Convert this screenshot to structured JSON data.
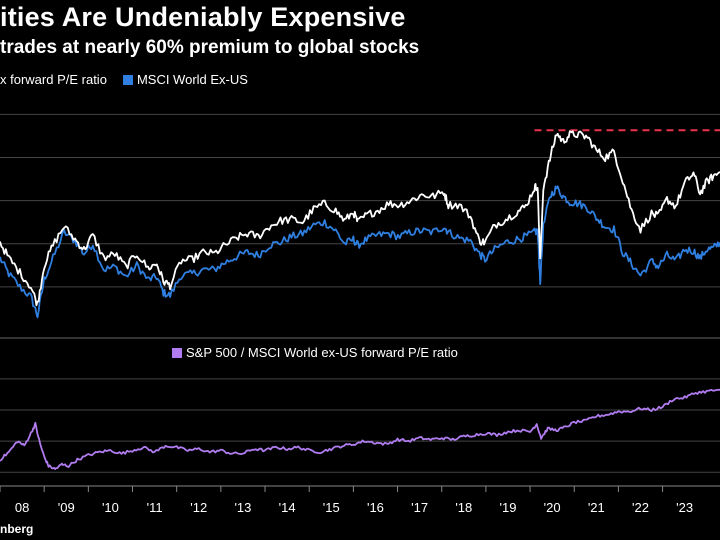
{
  "title": "ities Are Undeniably Expensive",
  "subtitle": "trades at nearly 60% premium to global stocks",
  "legend_top": [
    {
      "label": "x forward P/E ratio",
      "color": "#ffffff"
    },
    {
      "label": "MSCI World Ex-US",
      "color": "#2f7fe0"
    }
  ],
  "legend_bottom": {
    "label": "S&P 500 / MSCI World ex-US forward P/E ratio",
    "color": "#b07cf0"
  },
  "source": "nberg",
  "colors": {
    "white_series": "#ffffff",
    "blue_series": "#2f7fe0",
    "purple_series": "#b07cf0",
    "dashed_line": "#e8334a",
    "grid": "#444444"
  },
  "chart_data": [
    {
      "type": "line",
      "title": "Forward P/E ratio",
      "x_ticks": [
        "08",
        "'09",
        "'10",
        "'11",
        "'12",
        "'13",
        "'14",
        "'15",
        "'16",
        "'17",
        "'18",
        "'19",
        "'20",
        "'21",
        "'22",
        "'23"
      ],
      "xlim": [
        2008.0,
        2024.3
      ],
      "ylim": [
        9.0,
        25.0
      ],
      "grid_values": [
        12,
        15,
        18,
        21,
        24
      ],
      "series": [
        {
          "name": "x forward P/E ratio",
          "x": [
            2008.0,
            2008.2,
            2008.45,
            2008.7,
            2008.85,
            2009.0,
            2009.2,
            2009.45,
            2009.7,
            2009.9,
            2010.1,
            2010.35,
            2010.6,
            2010.85,
            2011.1,
            2011.35,
            2011.55,
            2011.7,
            2011.85,
            2012.1,
            2012.35,
            2012.6,
            2012.85,
            2013.1,
            2013.35,
            2013.6,
            2013.85,
            2014.1,
            2014.35,
            2014.6,
            2014.85,
            2015.1,
            2015.35,
            2015.6,
            2015.8,
            2016.0,
            2016.1,
            2016.3,
            2016.55,
            2016.8,
            2017.05,
            2017.3,
            2017.55,
            2017.8,
            2018.05,
            2018.15,
            2018.4,
            2018.65,
            2018.85,
            2018.98,
            2019.2,
            2019.45,
            2019.7,
            2019.9,
            2020.1,
            2020.17,
            2020.23,
            2020.3,
            2020.45,
            2020.6,
            2020.75,
            2020.9,
            2021.1,
            2021.3,
            2021.5,
            2021.7,
            2021.9,
            2022.1,
            2022.3,
            2022.5,
            2022.75,
            2022.9,
            2023.1,
            2023.3,
            2023.5,
            2023.7,
            2023.85,
            2024.0,
            2024.15,
            2024.3
          ],
          "values": [
            15.1,
            14.0,
            13.0,
            12.0,
            10.8,
            13.5,
            14.9,
            16.2,
            15.3,
            14.6,
            15.6,
            14.0,
            14.3,
            13.4,
            14.3,
            13.3,
            13.6,
            12.4,
            12.1,
            13.8,
            13.9,
            14.4,
            14.3,
            14.9,
            15.4,
            15.7,
            15.5,
            16.2,
            16.6,
            16.7,
            16.5,
            17.4,
            17.8,
            17.3,
            16.6,
            17.2,
            16.5,
            17.0,
            17.3,
            17.8,
            17.7,
            18.0,
            18.4,
            18.3,
            18.6,
            17.7,
            17.7,
            16.9,
            15.2,
            15.1,
            16.3,
            16.7,
            17.2,
            17.6,
            18.9,
            19.0,
            13.8,
            18.9,
            20.9,
            22.7,
            22.1,
            22.6,
            22.6,
            22.4,
            21.5,
            21.0,
            21.4,
            19.4,
            17.3,
            16.0,
            17.1,
            16.9,
            18.1,
            17.6,
            19.2,
            19.9,
            18.5,
            19.3,
            19.7,
            20.0
          ]
        },
        {
          "name": "MSCI World Ex-US",
          "x": [
            2008.0,
            2008.2,
            2008.45,
            2008.7,
            2008.85,
            2009.0,
            2009.2,
            2009.45,
            2009.7,
            2009.9,
            2010.1,
            2010.35,
            2010.6,
            2010.85,
            2011.1,
            2011.35,
            2011.55,
            2011.7,
            2011.85,
            2012.1,
            2012.35,
            2012.6,
            2012.85,
            2013.1,
            2013.35,
            2013.6,
            2013.85,
            2014.1,
            2014.35,
            2014.6,
            2014.85,
            2015.1,
            2015.35,
            2015.6,
            2015.8,
            2016.0,
            2016.1,
            2016.3,
            2016.55,
            2016.8,
            2017.05,
            2017.3,
            2017.55,
            2017.8,
            2018.05,
            2018.15,
            2018.4,
            2018.65,
            2018.85,
            2018.98,
            2019.2,
            2019.45,
            2019.7,
            2019.9,
            2020.1,
            2020.17,
            2020.23,
            2020.3,
            2020.45,
            2020.6,
            2020.75,
            2020.9,
            2021.1,
            2021.3,
            2021.5,
            2021.7,
            2021.9,
            2022.1,
            2022.3,
            2022.5,
            2022.75,
            2022.9,
            2023.1,
            2023.3,
            2023.5,
            2023.7,
            2023.85,
            2024.0,
            2024.15,
            2024.3
          ],
          "values": [
            14.0,
            12.9,
            12.0,
            11.3,
            10.0,
            12.5,
            14.0,
            15.8,
            15.2,
            14.3,
            15.0,
            13.2,
            13.4,
            12.7,
            13.5,
            12.5,
            12.7,
            11.6,
            11.4,
            12.8,
            12.9,
            13.2,
            13.2,
            13.7,
            14.1,
            14.4,
            14.2,
            14.9,
            15.1,
            15.5,
            15.7,
            16.3,
            16.5,
            15.9,
            15.0,
            15.3,
            14.9,
            15.3,
            15.6,
            15.7,
            15.5,
            15.8,
            15.9,
            15.8,
            16.2,
            15.8,
            15.4,
            15.2,
            14.3,
            13.9,
            14.6,
            15.1,
            15.3,
            15.5,
            15.8,
            15.9,
            12.4,
            16.2,
            18.3,
            18.9,
            18.3,
            17.9,
            17.8,
            17.5,
            16.8,
            16.2,
            16.0,
            14.4,
            13.6,
            12.8,
            13.8,
            13.4,
            14.2,
            13.8,
            14.6,
            14.5,
            14.0,
            14.6,
            14.7,
            15.1
          ]
        }
      ],
      "annotations": [
        {
          "type": "dashed-line",
          "y": 22.9,
          "x_start": 2020.1,
          "x_end": 2024.3
        }
      ]
    },
    {
      "type": "line",
      "title": "S&P 500 / MSCI World ex-US forward P/E ratio",
      "xlim": [
        2008.0,
        2024.3
      ],
      "ylim": [
        0.95,
        1.67
      ],
      "grid_values": [
        1.0,
        1.2,
        1.4,
        1.6
      ],
      "series": [
        {
          "name": "S&P 500 / MSCI World ex-US forward P/E ratio",
          "x": [
            2008.0,
            2008.2,
            2008.4,
            2008.55,
            2008.7,
            2008.8,
            2008.9,
            2009.0,
            2009.1,
            2009.25,
            2009.4,
            2009.55,
            2009.75,
            2010.0,
            2010.25,
            2010.5,
            2010.75,
            2011.0,
            2011.25,
            2011.5,
            2011.75,
            2012.0,
            2012.25,
            2012.5,
            2012.75,
            2013.0,
            2013.25,
            2013.5,
            2013.75,
            2014.0,
            2014.25,
            2014.5,
            2014.75,
            2015.0,
            2015.25,
            2015.5,
            2015.75,
            2016.0,
            2016.25,
            2016.5,
            2016.75,
            2017.0,
            2017.25,
            2017.5,
            2017.75,
            2018.0,
            2018.25,
            2018.5,
            2018.75,
            2019.0,
            2019.25,
            2019.5,
            2019.75,
            2020.0,
            2020.15,
            2020.25,
            2020.4,
            2020.6,
            2020.8,
            2021.0,
            2021.25,
            2021.5,
            2021.75,
            2022.0,
            2022.25,
            2022.5,
            2022.75,
            2023.0,
            2023.25,
            2023.5,
            2023.75,
            2024.0,
            2024.3
          ],
          "values": [
            1.08,
            1.13,
            1.2,
            1.17,
            1.25,
            1.31,
            1.19,
            1.1,
            1.04,
            1.02,
            1.05,
            1.04,
            1.08,
            1.11,
            1.13,
            1.14,
            1.12,
            1.14,
            1.16,
            1.13,
            1.17,
            1.16,
            1.14,
            1.15,
            1.13,
            1.14,
            1.12,
            1.12,
            1.15,
            1.14,
            1.16,
            1.15,
            1.16,
            1.14,
            1.13,
            1.15,
            1.17,
            1.18,
            1.2,
            1.19,
            1.18,
            1.21,
            1.2,
            1.22,
            1.21,
            1.22,
            1.21,
            1.23,
            1.24,
            1.25,
            1.24,
            1.26,
            1.27,
            1.26,
            1.31,
            1.22,
            1.28,
            1.27,
            1.29,
            1.32,
            1.33,
            1.36,
            1.37,
            1.39,
            1.39,
            1.41,
            1.4,
            1.42,
            1.47,
            1.48,
            1.51,
            1.52,
            1.53
          ]
        }
      ]
    }
  ]
}
